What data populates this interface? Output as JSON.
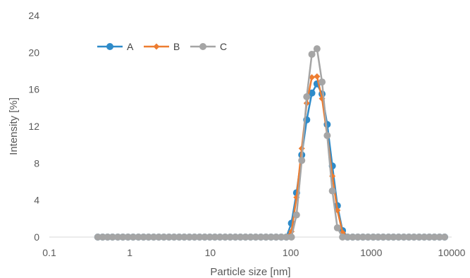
{
  "chart_data": {
    "type": "scatter",
    "xscale": "log",
    "xlim": [
      0.1,
      10000
    ],
    "ylim": [
      0,
      24
    ],
    "xticks": [
      0.1,
      1,
      10,
      100,
      1000,
      10000
    ],
    "xtick_labels": [
      "0.1",
      "1",
      "10",
      "100",
      "1000",
      "10000"
    ],
    "yticks": [
      0,
      4,
      8,
      12,
      16,
      20,
      24
    ],
    "ytick_labels": [
      "0",
      "4",
      "8",
      "12",
      "16",
      "20",
      "24"
    ],
    "xlabel": "Particle size [nm]",
    "ylabel": "Intensity [%]",
    "grid": "none",
    "legend": "top-left",
    "x": [
      0.4,
      0.46,
      0.53,
      0.61,
      0.71,
      0.82,
      0.95,
      1.1,
      1.28,
      1.48,
      1.71,
      1.98,
      2.29,
      2.65,
      3.07,
      3.55,
      4.11,
      4.75,
      5.5,
      6.37,
      7.37,
      8.53,
      9.87,
      11.4,
      13.2,
      15.3,
      17.7,
      20.5,
      23.7,
      27.4,
      31.7,
      36.7,
      42.5,
      49.2,
      56.9,
      65.8,
      76.2,
      88.2,
      102,
      118,
      137,
      158,
      183,
      212,
      245,
      284,
      329,
      380,
      440,
      509,
      589,
      682,
      789,
      913,
      1060,
      1220,
      1410,
      1640,
      1890,
      2190,
      2540,
      2940,
      3400,
      3940,
      4560,
      5270,
      6100,
      7060,
      8170
    ],
    "series": [
      {
        "name": "A",
        "color": "#2E8BC9",
        "marker": "circle",
        "values": [
          0,
          0,
          0,
          0,
          0,
          0,
          0,
          0,
          0,
          0,
          0,
          0,
          0,
          0,
          0,
          0,
          0,
          0,
          0,
          0,
          0,
          0,
          0,
          0,
          0,
          0,
          0,
          0,
          0,
          0,
          0,
          0,
          0,
          0,
          0,
          0,
          0,
          0,
          1.5,
          4.8,
          8.9,
          12.7,
          15.6,
          16.6,
          15.5,
          12.2,
          7.7,
          3.4,
          0.7,
          0,
          0,
          0,
          0,
          0,
          0,
          0,
          0,
          0,
          0,
          0,
          0,
          0,
          0,
          0,
          0,
          0,
          0,
          0,
          0
        ]
      },
      {
        "name": "B",
        "color": "#ED7D31",
        "marker": "diamond",
        "values": [
          0,
          0,
          0,
          0,
          0,
          0,
          0,
          0,
          0,
          0,
          0,
          0,
          0,
          0,
          0,
          0,
          0,
          0,
          0,
          0,
          0,
          0,
          0,
          0,
          0,
          0,
          0,
          0,
          0,
          0,
          0,
          0,
          0,
          0,
          0,
          0,
          0,
          0,
          0.6,
          4.3,
          9.6,
          14.5,
          17.3,
          17.4,
          15.0,
          11.0,
          6.6,
          2.9,
          0.5,
          0,
          0,
          0,
          0,
          0,
          0,
          0,
          0,
          0,
          0,
          0,
          0,
          0,
          0,
          0,
          0,
          0,
          0,
          0,
          0
        ]
      },
      {
        "name": "C",
        "color": "#A5A5A5",
        "marker": "circle",
        "values": [
          0,
          0,
          0,
          0,
          0,
          0,
          0,
          0,
          0,
          0,
          0,
          0,
          0,
          0,
          0,
          0,
          0,
          0,
          0,
          0,
          0,
          0,
          0,
          0,
          0,
          0,
          0,
          0,
          0,
          0,
          0,
          0,
          0,
          0,
          0,
          0,
          0,
          0,
          0,
          2.4,
          8.3,
          15.2,
          19.8,
          20.4,
          16.8,
          11.0,
          5.0,
          1.0,
          0,
          0,
          0,
          0,
          0,
          0,
          0,
          0,
          0,
          0,
          0,
          0,
          0,
          0,
          0,
          0,
          0,
          0,
          0,
          0,
          0
        ]
      }
    ]
  }
}
